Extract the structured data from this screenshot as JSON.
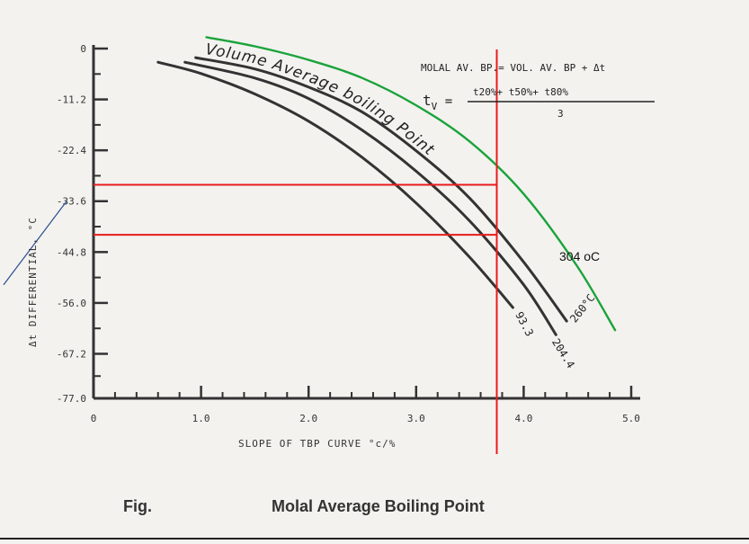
{
  "chart_data": {
    "type": "line",
    "title": "Volume Average boiling Point",
    "xlabel": "SLOPE OF TBP CURVE °c/%",
    "ylabel": "Δt DIFFERENTIAL, °C",
    "xlim": [
      0,
      5.0
    ],
    "ylim": [
      -77.0,
      0
    ],
    "x_ticks": [
      "0",
      "1.0",
      "2.0",
      "3.0",
      "4.0",
      "5.0"
    ],
    "y_ticks": [
      {
        "value": 0,
        "label": "0"
      },
      {
        "value": -11.2,
        "label": "-11.2"
      },
      {
        "value": -22.4,
        "label": "-22.4"
      },
      {
        "value": -33.6,
        "label": "-33.6"
      },
      {
        "value": -44.8,
        "label": "-44.8"
      },
      {
        "value": -56.0,
        "label": "-56.0"
      },
      {
        "value": -67.2,
        "label": "-67.2"
      },
      {
        "value": -77.0,
        "label": "-77.0"
      }
    ],
    "series": [
      {
        "name": "93.3",
        "x": [
          0.6,
          1.0,
          1.5,
          2.0,
          2.5,
          3.0,
          3.5,
          3.9
        ],
        "y": [
          -3,
          -5.5,
          -10,
          -16,
          -24,
          -34,
          -46,
          -57
        ]
      },
      {
        "name": "204.4",
        "x": [
          0.85,
          1.5,
          2.0,
          2.5,
          3.0,
          3.5,
          4.0,
          4.3
        ],
        "y": [
          -3,
          -6.5,
          -11,
          -18,
          -27,
          -38,
          -52,
          -63
        ]
      },
      {
        "name": "260°C",
        "x": [
          0.95,
          1.5,
          2.0,
          2.5,
          3.0,
          3.5,
          4.0,
          4.4
        ],
        "y": [
          -2,
          -4.5,
          -8.5,
          -14,
          -22.5,
          -33,
          -47,
          -60
        ]
      },
      {
        "name": "Volume Average boiling Point",
        "x": [
          1.05,
          1.5,
          2.0,
          2.5,
          3.0,
          3.5,
          4.0,
          4.5,
          4.85
        ],
        "y": [
          2.5,
          0.5,
          -2.5,
          -6.5,
          -12.5,
          -20.5,
          -32,
          -48,
          -62
        ]
      }
    ],
    "reference_lines": {
      "vertical_x": 3.75,
      "horizontal_y": [
        -30,
        -41
      ]
    },
    "annotation": "304 oC",
    "formula": {
      "line1": "MOLAL  AV. BP.= VOL. AV. BP + Δt",
      "lhs": "t",
      "lhs_sub": "V",
      "numerator": "t20%+ t50%+ t80%",
      "denominator": "3"
    },
    "colors": {
      "curves": "#333333",
      "green_curve": "#1aa33a",
      "red_lines": "#e81c1c",
      "annotation_line": "#2a4d8f"
    }
  },
  "caption": {
    "label": "Fig.",
    "title": "Molal Average Boiling Point"
  }
}
